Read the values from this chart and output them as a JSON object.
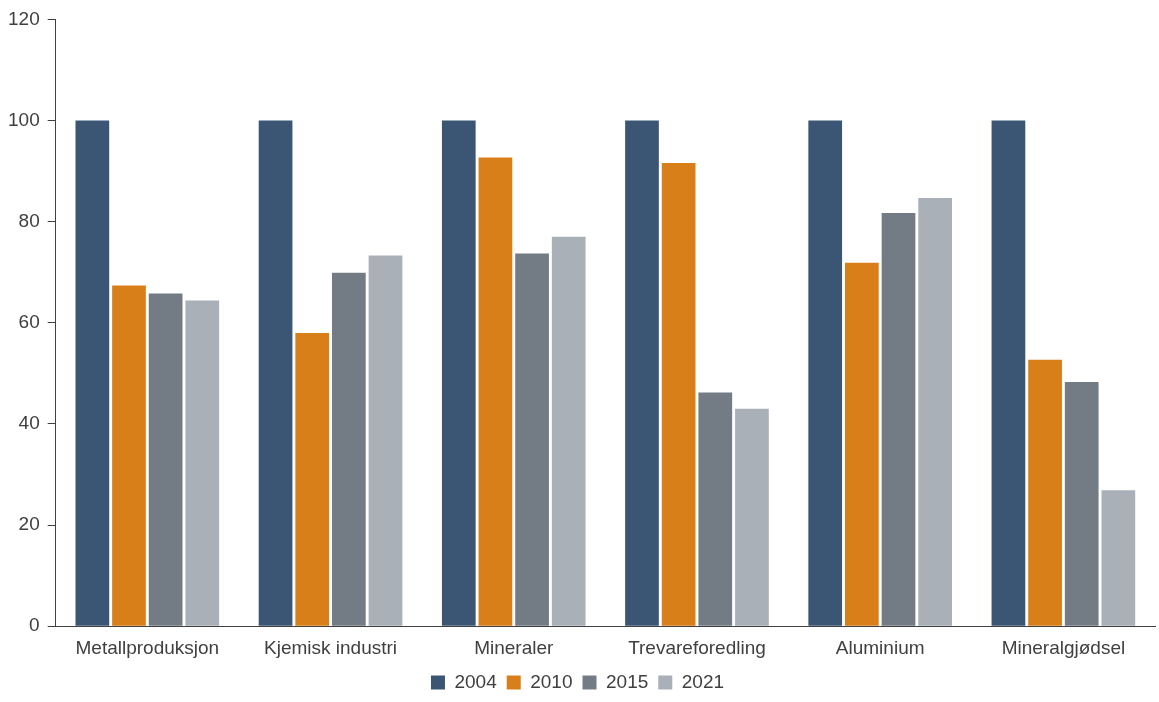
{
  "chart_data": {
    "type": "bar",
    "categories": [
      "Metallproduksjon",
      "Kjemisk industri",
      "Mineraler",
      "Trevareforedling",
      "Aluminium",
      "Mineralgjødsel"
    ],
    "series": [
      {
        "name": "2004",
        "color": "#3b5675",
        "values": [
          100,
          100,
          100,
          100,
          100,
          100
        ]
      },
      {
        "name": "2010",
        "color": "#d97f1a",
        "values": [
          67.4,
          58,
          92.7,
          91.6,
          71.9,
          52.7
        ]
      },
      {
        "name": "2015",
        "color": "#737c85",
        "values": [
          65.8,
          69.9,
          73.7,
          46.2,
          81.7,
          48.3
        ]
      },
      {
        "name": "2021",
        "color": "#a9b0b8",
        "values": [
          64.4,
          73.3,
          77,
          43,
          84.7,
          26.9
        ]
      }
    ],
    "ylim": [
      0,
      120
    ],
    "yticks": [
      0,
      20,
      40,
      60,
      80,
      100,
      120
    ],
    "grid": false,
    "legend": "bottom"
  }
}
